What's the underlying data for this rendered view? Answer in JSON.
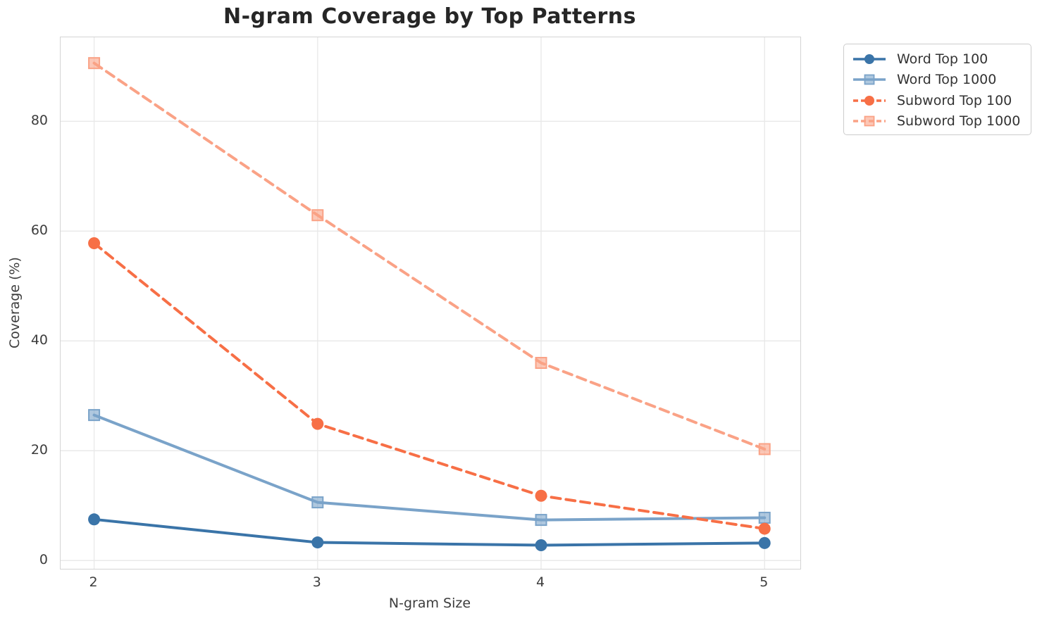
{
  "chart_data": {
    "type": "line",
    "title": "N-gram Coverage by Top Patterns",
    "xlabel": "N-gram Size",
    "ylabel": "Coverage (%)",
    "x": [
      2,
      3,
      4,
      5
    ],
    "xticks": [
      2,
      3,
      4,
      5
    ],
    "yticks": [
      0,
      20,
      40,
      60,
      80
    ],
    "xlim": [
      1.85,
      5.16
    ],
    "ylim": [
      -1.5,
      95.3
    ],
    "grid": true,
    "legend_position": "outside-upper-right",
    "series": [
      {
        "name": "Word Top 100",
        "color": "#3a74a8",
        "marker": "circle",
        "line": "solid",
        "values": [
          7.5,
          3.3,
          2.8,
          3.2
        ]
      },
      {
        "name": "Word Top 1000",
        "color": "#7aa3c9",
        "marker": "square",
        "line": "solid",
        "values": [
          26.5,
          10.6,
          7.4,
          7.8
        ]
      },
      {
        "name": "Subword Top 100",
        "color": "#f76f46",
        "marker": "circle",
        "line": "dashed",
        "values": [
          57.8,
          24.9,
          11.8,
          5.8
        ]
      },
      {
        "name": "Subword Top 1000",
        "color": "#faa286",
        "marker": "square",
        "line": "dashed",
        "values": [
          90.6,
          62.9,
          36.0,
          20.3
        ]
      }
    ]
  }
}
